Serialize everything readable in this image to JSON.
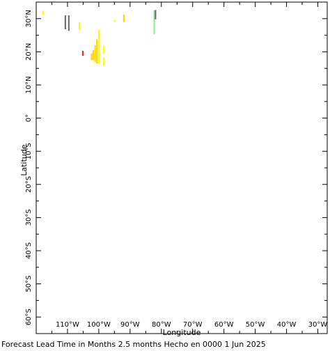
{
  "map": {
    "x_axis": {
      "label": "Longitude",
      "range": [
        -120,
        -27
      ],
      "ticks": [
        {
          "value": -110,
          "label": "110°W"
        },
        {
          "value": -100,
          "label": "100°W"
        },
        {
          "value": -90,
          "label": "90°W"
        },
        {
          "value": -80,
          "label": "80°W"
        },
        {
          "value": -70,
          "label": "70°W"
        },
        {
          "value": -60,
          "label": "60°W"
        },
        {
          "value": -50,
          "label": "50°W"
        },
        {
          "value": -40,
          "label": "40°W"
        },
        {
          "value": -30,
          "label": "30°W"
        }
      ]
    },
    "y_axis": {
      "label": "Latitude",
      "range": [
        -65,
        35
      ],
      "ticks": [
        {
          "value": 30,
          "label": "30°N"
        },
        {
          "value": 20,
          "label": "20°N"
        },
        {
          "value": 10,
          "label": "10°N"
        },
        {
          "value": 0,
          "label": "0°"
        },
        {
          "value": -10,
          "label": "10°S"
        },
        {
          "value": -20,
          "label": "20°S"
        },
        {
          "value": -30,
          "label": "30°S"
        },
        {
          "value": -40,
          "label": "40°S"
        },
        {
          "value": -50,
          "label": "50°S"
        },
        {
          "value": -60,
          "label": "60°S"
        }
      ]
    },
    "colors": {
      "yellow": "#ffff00",
      "gold": "#ffd700",
      "red": "#ff2200",
      "gray": "#707070",
      "green": "#90ee90"
    },
    "cells": [
      {
        "lon": -117.8,
        "lat": 32.4,
        "lat2": 31.0,
        "color": "yellow"
      },
      {
        "lon": -110.7,
        "lat": 31.0,
        "lat2": 26.8,
        "color": "gray"
      },
      {
        "lon": -109.6,
        "lat": 31.0,
        "lat2": 26.3,
        "color": "gray"
      },
      {
        "lon": -106.2,
        "lat": 29.0,
        "lat2": 26.6,
        "color": "yellow"
      },
      {
        "lon": -105.1,
        "lat": 20.3,
        "lat2": 18.8,
        "color": "red"
      },
      {
        "lon": -100.0,
        "lat": 26.8,
        "lat2": 16.5,
        "color": "yellow"
      },
      {
        "lon": -100.6,
        "lat": 23.8,
        "lat2": 16.5,
        "color": "gold"
      },
      {
        "lon": -101.2,
        "lat": 22.0,
        "lat2": 17.0,
        "color": "gold"
      },
      {
        "lon": -101.8,
        "lat": 20.5,
        "lat2": 17.5,
        "color": "gold"
      },
      {
        "lon": -102.3,
        "lat": 19.5,
        "lat2": 17.5,
        "color": "gold"
      },
      {
        "lon": -98.4,
        "lat": 22.0,
        "lat2": 19.5,
        "color": "yellow"
      },
      {
        "lon": -98.4,
        "lat": 18.3,
        "lat2": 15.8,
        "color": "yellow"
      },
      {
        "lon": -95.0,
        "lat": 29.6,
        "lat2": 29.0,
        "color": "yellow"
      },
      {
        "lon": -92.0,
        "lat": 31.2,
        "lat2": 29.0,
        "color": "gold"
      },
      {
        "lon": -82.3,
        "lat": 32.6,
        "lat2": 25.3,
        "color": "green"
      },
      {
        "lon": -81.9,
        "lat": 32.6,
        "lat2": 29.8,
        "color": "gray"
      }
    ]
  },
  "caption": "Forecast Lead Time in Months 2.5 months Hecho en 0000 1 Jun 2025"
}
